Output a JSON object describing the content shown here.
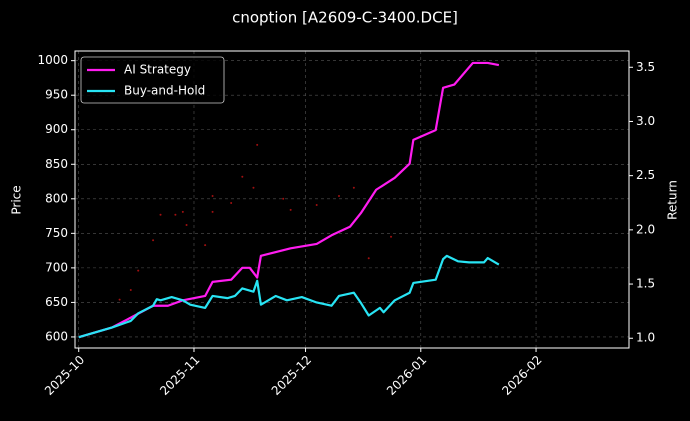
{
  "chart_data": {
    "type": "line",
    "title": "cnoption [A2609-C-3400.DCE]",
    "y_label": "Price",
    "y2_label": "Return",
    "xlim": [
      -1,
      148
    ],
    "xticks": [
      {
        "value": 0,
        "label": "2025-10"
      },
      {
        "value": 31,
        "label": "2025-11"
      },
      {
        "value": 61,
        "label": "2025-12"
      },
      {
        "value": 92,
        "label": "2026-01"
      },
      {
        "value": 123,
        "label": "2026-02"
      }
    ],
    "ylim": [
      584,
      1014
    ],
    "yticks": [
      600,
      650,
      700,
      750,
      800,
      850,
      900,
      950,
      1000
    ],
    "y2lim": [
      0.91,
      3.65
    ],
    "y2ticks": [
      {
        "value": 1,
        "label": "1.0"
      },
      1.5,
      {
        "value": 2,
        "label": "2.0"
      },
      2.5,
      {
        "value": 3,
        "label": "3.0"
      },
      3.5
    ],
    "grid": true,
    "legend": "upper left",
    "series": [
      {
        "name": "AI Strategy",
        "color": "#ff1cf0",
        "axis": "y2",
        "x": [
          0,
          9,
          14,
          20,
          24,
          28,
          34,
          36,
          41,
          44,
          46,
          48,
          49,
          57,
          64,
          68,
          73,
          76,
          80,
          85,
          89,
          90,
          96,
          98,
          101,
          106,
          110,
          113
        ],
        "values": [
          1.01,
          1.1,
          1.19,
          1.3,
          1.3,
          1.35,
          1.39,
          1.52,
          1.54,
          1.65,
          1.65,
          1.56,
          1.76,
          1.83,
          1.87,
          1.95,
          2.03,
          2.16,
          2.37,
          2.48,
          2.61,
          2.83,
          2.92,
          3.31,
          3.34,
          3.54,
          3.54,
          3.52
        ]
      },
      {
        "name": "Buy-and-Hold",
        "color": "#28e4f4",
        "axis": "y2",
        "x": [
          0,
          9,
          14,
          16,
          20,
          21,
          22,
          25,
          28,
          30,
          34,
          36,
          40,
          42,
          44,
          47,
          48,
          49,
          53,
          56,
          60,
          64,
          68,
          70,
          74,
          76,
          78,
          81,
          82,
          85,
          89,
          90,
          96,
          98,
          99,
          102,
          105,
          109,
          110,
          113
        ],
        "values": [
          1.01,
          1.1,
          1.16,
          1.23,
          1.3,
          1.36,
          1.35,
          1.38,
          1.35,
          1.31,
          1.28,
          1.39,
          1.37,
          1.39,
          1.46,
          1.43,
          1.53,
          1.31,
          1.39,
          1.35,
          1.38,
          1.33,
          1.3,
          1.39,
          1.42,
          1.32,
          1.21,
          1.28,
          1.24,
          1.35,
          1.42,
          1.51,
          1.54,
          1.73,
          1.76,
          1.71,
          1.7,
          1.7,
          1.74,
          1.68
        ]
      }
    ],
    "price_points": {
      "color": "#a01010",
      "x": [
        11,
        14,
        16,
        20,
        22,
        26,
        28,
        29,
        34,
        36,
        36,
        41,
        44,
        47,
        48,
        55,
        57,
        64,
        70,
        74,
        78,
        84
      ],
      "values": [
        654,
        668,
        696,
        740,
        777,
        777,
        781,
        762,
        733,
        781,
        804,
        794,
        832,
        816,
        878,
        800,
        784,
        791,
        804,
        816,
        714,
        745
      ]
    }
  }
}
